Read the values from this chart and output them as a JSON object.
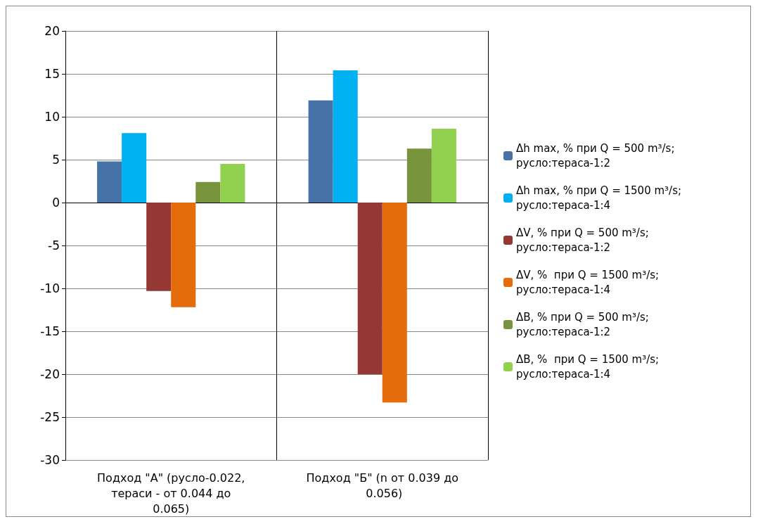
{
  "chart_data": {
    "type": "bar",
    "categories": [
      "Подход \"А\" (русло-0.022, тераси - от 0.044 до 0.065)",
      "Подход \"Б\" (n от 0.039 до 0.056)"
    ],
    "series": [
      {
        "name": "Δh max, % при Q = 500 m³/s; русло:тераса-1:2",
        "color": "#4572a7",
        "values": [
          4.8,
          11.9
        ]
      },
      {
        "name": "Δh max, % при Q = 1500 m³/s; русло:тераса-1:4",
        "color": "#00b0f0",
        "values": [
          8.1,
          15.4
        ]
      },
      {
        "name": "ΔV, % при Q = 500 m³/s; русло:тераса-1:2",
        "color": "#953735",
        "values": [
          -10.3,
          -20
        ]
      },
      {
        "name": "ΔV, %  при Q = 1500 m³/s; русло:тераса-1:4",
        "color": "#e46c0a",
        "values": [
          -12.2,
          -23.3
        ]
      },
      {
        "name": "ΔB, % при Q = 500 m³/s; русло:тераса-1:2",
        "color": "#77933c",
        "values": [
          2.4,
          6.3
        ]
      },
      {
        "name": "ΔB, %  при Q = 1500 m³/s; русло:тераса-1:4",
        "color": "#92d050",
        "values": [
          4.5,
          8.6
        ]
      }
    ],
    "ylim": [
      -30,
      20
    ],
    "yticks": [
      -30,
      -25,
      -20,
      -15,
      -10,
      -5,
      0,
      5,
      10,
      15,
      20
    ],
    "grid": true,
    "legend": "right"
  }
}
